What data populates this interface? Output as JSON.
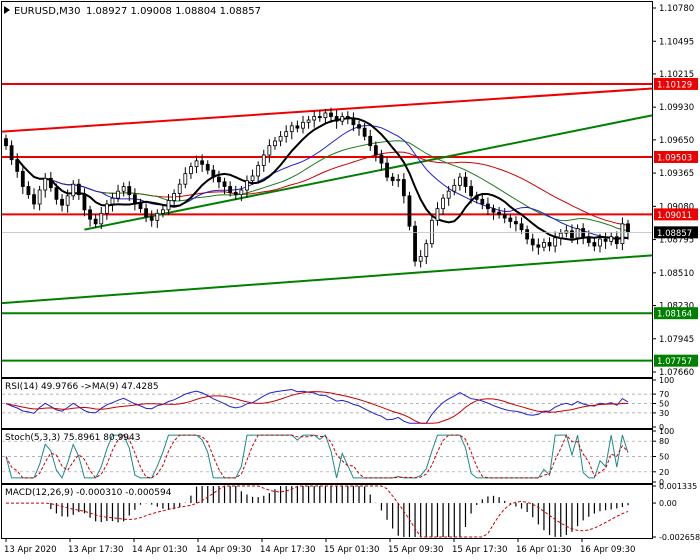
{
  "header": {
    "symbol": "EURUSD,M30",
    "ohlc": "1.08927 1.09008 1.08804 1.08857"
  },
  "colors": {
    "bull": "#000000",
    "bear": "#000000",
    "level_red": "#ee0000",
    "level_green": "#008000",
    "ma_fast": "#000000",
    "ma_blue": "#1f1fd0",
    "ma_green": "#1c7a1c",
    "ma_red": "#cc0000",
    "price_tag": "#000000"
  },
  "chart_data": [
    {
      "type": "candlestick",
      "panel": "main",
      "y_ticks": [
        "1.10780",
        "1.10495",
        "1.10215",
        "1.09930",
        "1.09650",
        "1.09365",
        "1.09080",
        "1.08795",
        "1.08510",
        "1.08230",
        "1.07945",
        "1.07660"
      ],
      "ylim": [
        1.0766,
        1.1078
      ],
      "x_ticks": [
        "13 Apr 2020",
        "13 Apr 17:30",
        "14 Apr 01:30",
        "14 Apr 09:30",
        "14 Apr 17:30",
        "15 Apr 01:30",
        "15 Apr 09:30",
        "15 Apr 17:30",
        "16 Apr 01:30",
        "16 Apr 09:30"
      ],
      "levels": [
        {
          "value": 1.10129,
          "label": "1.10129",
          "color": "red"
        },
        {
          "value": 1.09503,
          "label": "1.09503",
          "color": "red"
        },
        {
          "value": 1.09011,
          "label": "1.09011",
          "color": "red"
        },
        {
          "value": 1.08164,
          "label": "1.08164",
          "color": "green"
        },
        {
          "value": 1.07757,
          "label": "1.07757",
          "color": "green"
        }
      ],
      "current_price": {
        "value": 1.08857,
        "label": "1.08857"
      },
      "trendlines": [
        {
          "name": "upper-red",
          "color": "red",
          "from": [
            0,
            1.0972
          ],
          "to": [
            130,
            1.1009
          ]
        },
        {
          "name": "rising-green",
          "color": "green",
          "from": [
            14,
            1.0888
          ],
          "to": [
            130,
            1.0986
          ]
        },
        {
          "name": "lower-green",
          "color": "green",
          "from": [
            0,
            1.0825
          ],
          "to": [
            130,
            1.0866
          ]
        }
      ],
      "candles_close": [
        1.096,
        1.0948,
        1.0938,
        1.0925,
        1.0918,
        1.091,
        1.0922,
        1.0932,
        1.0924,
        1.0914,
        1.0909,
        1.0917,
        1.0927,
        1.0918,
        1.0905,
        1.0897,
        1.0893,
        1.0902,
        1.091,
        1.0915,
        1.0921,
        1.0925,
        1.0918,
        1.0911,
        1.0906,
        1.0899,
        1.0896,
        1.0902,
        1.0905,
        1.0913,
        1.0919,
        1.0927,
        1.0936,
        1.0942,
        1.0947,
        1.0944,
        1.0939,
        1.0933,
        1.0929,
        1.0925,
        1.092,
        1.0918,
        1.0922,
        1.093,
        1.0934,
        1.0943,
        1.0952,
        1.096,
        1.0964,
        1.0968,
        1.0972,
        1.0977,
        1.0975,
        1.098,
        1.0982,
        1.0985,
        1.0984,
        1.0988,
        1.0985,
        1.0981,
        1.0985,
        1.0983,
        1.0978,
        1.0975,
        1.0968,
        1.096,
        1.0952,
        1.0945,
        1.0933,
        1.093,
        1.0931,
        1.0917,
        1.0891,
        1.0861,
        1.0865,
        1.0876,
        1.0896,
        1.0906,
        1.0915,
        1.0921,
        1.0926,
        1.0933,
        1.0925,
        1.0917,
        1.0914,
        1.091,
        1.0906,
        1.0903,
        1.0901,
        1.0898,
        1.0895,
        1.0893,
        1.0888,
        1.088,
        1.0875,
        1.0873,
        1.0877,
        1.0874,
        1.0881,
        1.0885,
        1.0887,
        1.0881,
        1.0889,
        1.0882,
        1.0877,
        1.0874,
        1.088,
        1.0878,
        1.0882,
        1.0876,
        1.0893,
        1.0886
      ]
    },
    {
      "type": "line",
      "panel": "rsi",
      "label": "RSI(14) 49.9766  ->MA(9) 47.4285",
      "y_ticks": [
        "100",
        "70",
        "50",
        "30",
        "0"
      ],
      "ylim": [
        0,
        100
      ]
    },
    {
      "type": "line",
      "panel": "stochastic",
      "label": "Stoch(5,3,3) 75.8961 80.9943",
      "y_ticks": [
        "100",
        "80",
        "50",
        "20",
        "0"
      ],
      "ylim": [
        0,
        100
      ]
    },
    {
      "type": "bar",
      "panel": "macd",
      "label": "MACD(12,26,9) -0.000310 -0.000594",
      "y_ticks": [
        "0.001335",
        "0.00",
        "-0.002658"
      ],
      "ylim": [
        -0.002658,
        0.001335
      ]
    }
  ]
}
